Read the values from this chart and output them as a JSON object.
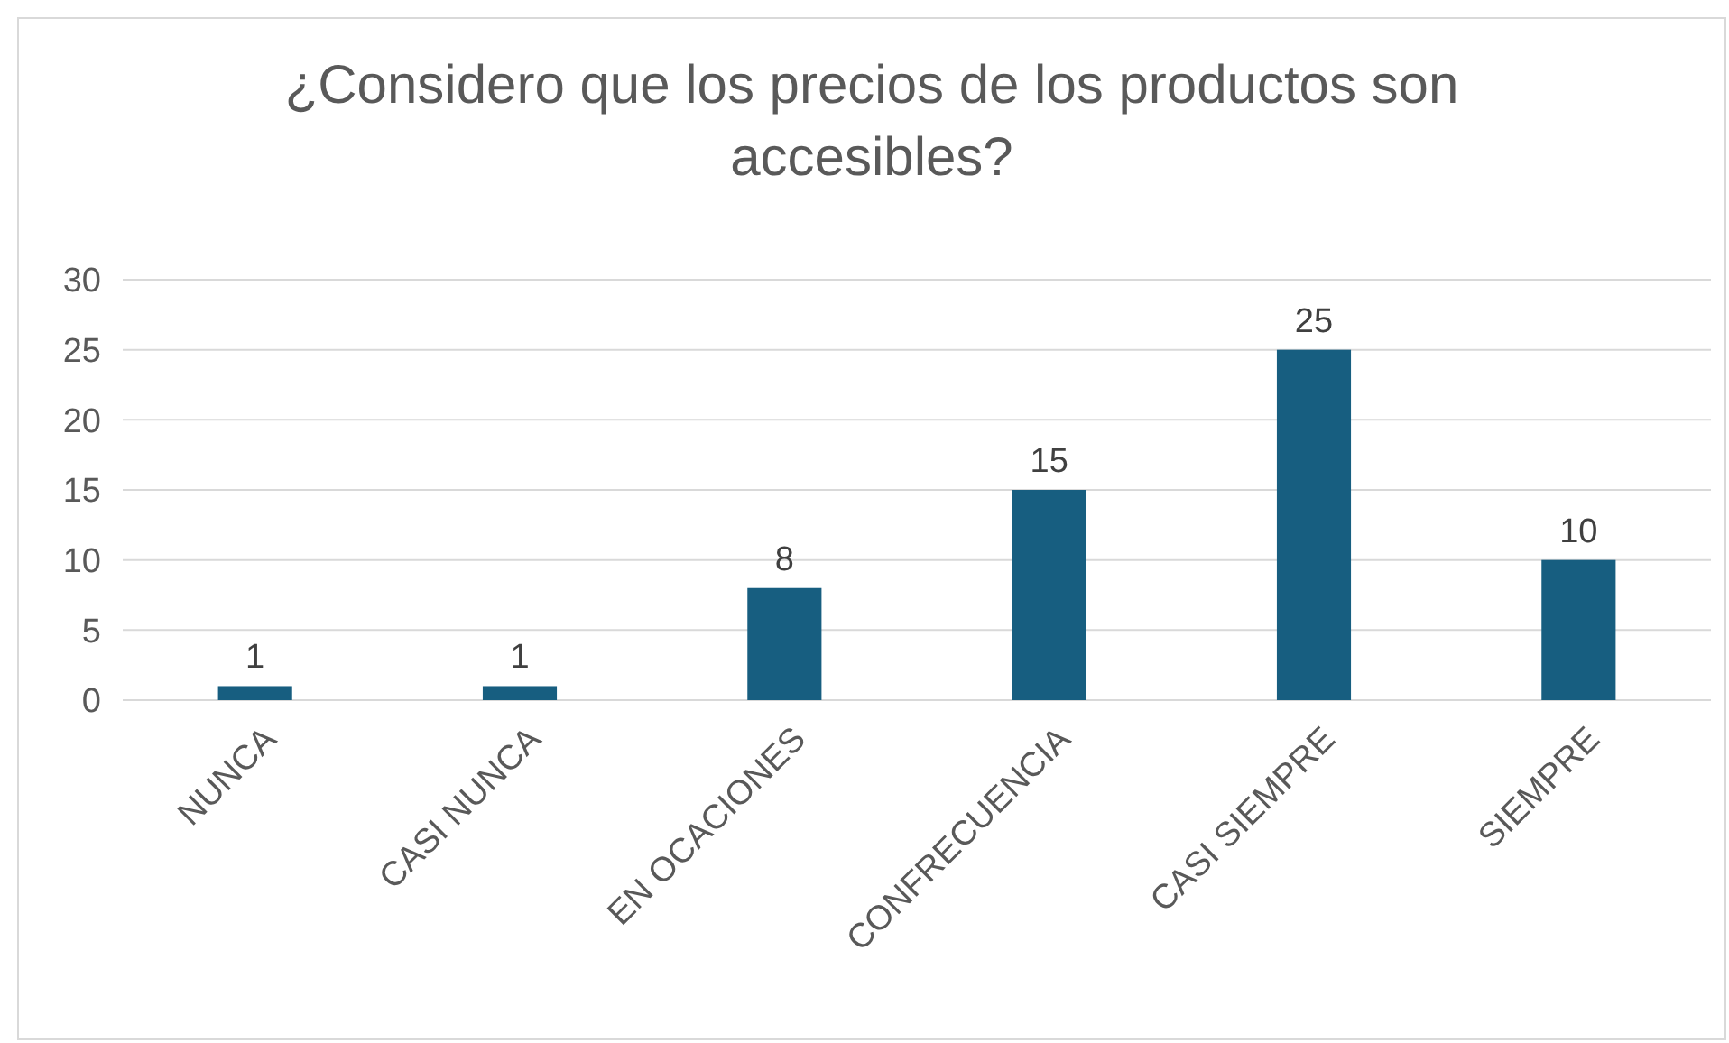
{
  "chart_data": {
    "type": "bar",
    "title": "¿Considero que los precios de los productos son accesibles?",
    "categories": [
      "NUNCA",
      "CASI NUNCA",
      "EN OCACIONES",
      "CONFRECUENCIA",
      "CASI SIEMPRE",
      "SIEMPRE"
    ],
    "values": [
      1,
      1,
      8,
      15,
      25,
      10
    ],
    "color": "#175e80",
    "ylim": [
      0,
      30
    ],
    "yticks": [
      0,
      5,
      10,
      15,
      20,
      25,
      30
    ],
    "grid": "y",
    "data_labels": true
  }
}
